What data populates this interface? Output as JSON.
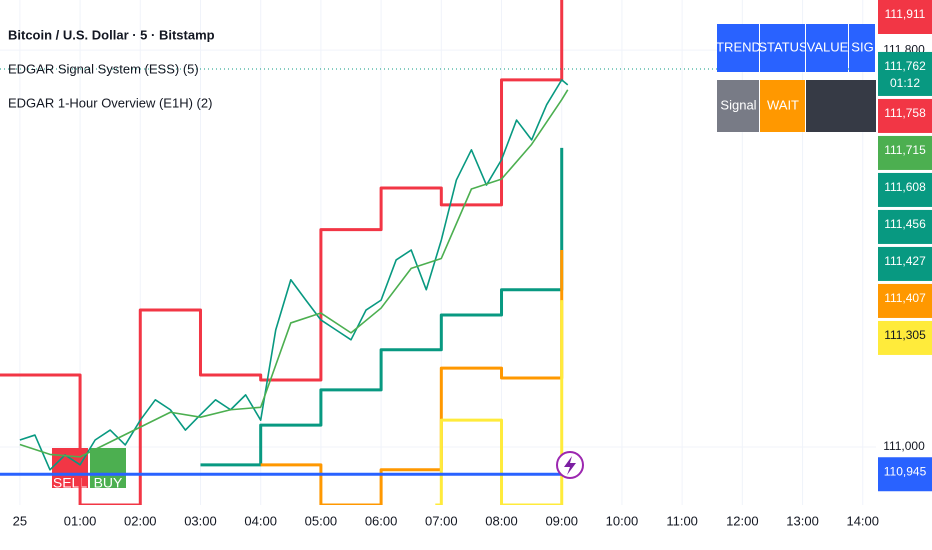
{
  "chart_data": {
    "type": "line",
    "legend_lines": [
      "Bitcoin / U.S. Dollar · 5 · Bitstamp",
      "EDGAR Signal System (ESS) (5)",
      "EDGAR 1-Hour Overview (E1H) (2)"
    ],
    "xlim": [
      -0.33,
      14.22
    ],
    "ylim": [
      110883,
      111901
    ],
    "grid": true,
    "xticks": [
      {
        "value": 0,
        "label": "25"
      },
      {
        "value": 1,
        "label": "01:00"
      },
      {
        "value": 2,
        "label": "02:00"
      },
      {
        "value": 3,
        "label": "03:00"
      },
      {
        "value": 4,
        "label": "04:00"
      },
      {
        "value": 5,
        "label": "05:00"
      },
      {
        "value": 6,
        "label": "06:00"
      },
      {
        "value": 7,
        "label": "07:00"
      },
      {
        "value": 8,
        "label": "08:00"
      },
      {
        "value": 9,
        "label": "09:00"
      },
      {
        "value": 10,
        "label": "10:00"
      },
      {
        "value": 11,
        "label": "11:00"
      },
      {
        "value": 12,
        "label": "12:00"
      },
      {
        "value": 13,
        "label": "13:00"
      },
      {
        "value": 14,
        "label": "14:00"
      }
    ],
    "yticks": [
      {
        "value": 111000,
        "label": "111,000"
      },
      {
        "value": 111800,
        "label": "111,800"
      }
    ],
    "series": [
      {
        "color": "#f23645",
        "step": true,
        "x": [
          -0.33,
          1,
          2,
          3,
          4,
          5,
          6,
          7,
          8,
          9
        ],
        "values": [
          111145,
          110883,
          111276,
          111145,
          111135,
          111438,
          111522,
          111488,
          111740,
          111901
        ]
      },
      {
        "color": "#089981",
        "step": true,
        "x": [
          3,
          4,
          5,
          6,
          7,
          8,
          9
        ],
        "values": [
          110964,
          111044,
          111115,
          111196,
          111266,
          111317,
          111603
        ]
      },
      {
        "color": "#ff9800",
        "step": true,
        "x": [
          4,
          5,
          6,
          7,
          8,
          9
        ],
        "values": [
          110964,
          110883,
          110954,
          111159,
          111139,
          111397
        ]
      },
      {
        "color": "#ffeb3b",
        "step": true,
        "x": [
          6.9,
          7,
          8,
          9
        ],
        "values": [
          110883,
          111054,
          110883,
          111296
        ]
      },
      {
        "color": "#2962ff",
        "step": true,
        "x": [
          -0.33,
          9
        ],
        "values": [
          110945,
          110945
        ]
      },
      {
        "color": "#089981",
        "step": false,
        "x": [
          0,
          0.25,
          0.5,
          0.75,
          1,
          1.25,
          1.5,
          1.75,
          2,
          2.25,
          2.5,
          2.75,
          3,
          3.25,
          3.5,
          3.75,
          4,
          4.25,
          4.5,
          4.75,
          5,
          5.25,
          5.5,
          5.75,
          6,
          6.25,
          6.5,
          6.75,
          7,
          7.25,
          7.5,
          7.75,
          8,
          8.25,
          8.5,
          8.75,
          9,
          9.1
        ],
        "values": [
          111014,
          111024,
          110954,
          110984,
          110964,
          111014,
          111034,
          111004,
          111054,
          111095,
          111075,
          111034,
          111065,
          111095,
          111075,
          111105,
          111054,
          111236,
          111337,
          111296,
          111256,
          111236,
          111216,
          111276,
          111296,
          111377,
          111397,
          111317,
          111417,
          111538,
          111599,
          111528,
          111579,
          111659,
          111619,
          111690,
          111740,
          111730
        ]
      },
      {
        "color": "#4caf50",
        "step": false,
        "x": [
          0,
          0.5,
          1,
          1.5,
          2,
          2.5,
          3,
          3.5,
          4,
          4.5,
          5,
          5.5,
          6,
          6.5,
          7,
          7.5,
          8,
          8.5,
          9,
          9.1
        ],
        "values": [
          111005,
          110985,
          110980,
          111010,
          111040,
          111070,
          111060,
          111075,
          111080,
          111250,
          111270,
          111230,
          111280,
          111360,
          111380,
          111520,
          111540,
          111610,
          111700,
          111720
        ]
      }
    ],
    "current_price": 111762,
    "price_labels": [
      {
        "value": 111911,
        "label": "111,911",
        "color": "#f23645"
      },
      {
        "value": 111762,
        "label": "111,762",
        "color": "#089981",
        "countdown": "01:12"
      },
      {
        "value": 111758,
        "label": "111,758",
        "color": "#f23645"
      },
      {
        "value": 111715,
        "label": "111,715",
        "color": "#4caf50"
      },
      {
        "value": 111608,
        "label": "111,608",
        "color": "#089981"
      },
      {
        "value": 111456,
        "label": "111,456",
        "color": "#089981"
      },
      {
        "value": 111427,
        "label": "111,427",
        "color": "#089981"
      },
      {
        "value": 111407,
        "label": "111,407",
        "color": "#ff9800"
      },
      {
        "value": 111305,
        "label": "111,305",
        "color": "#ffeb3b"
      },
      {
        "value": 110945,
        "label": "110,945",
        "color": "#2962ff"
      }
    ],
    "annotations": [
      "SELL",
      "BUY"
    ],
    "table": {
      "header": [
        "TREND",
        "STATUS",
        "VALUE",
        "SIG"
      ],
      "rows": [
        [
          "Signal",
          "WAIT"
        ]
      ]
    }
  }
}
